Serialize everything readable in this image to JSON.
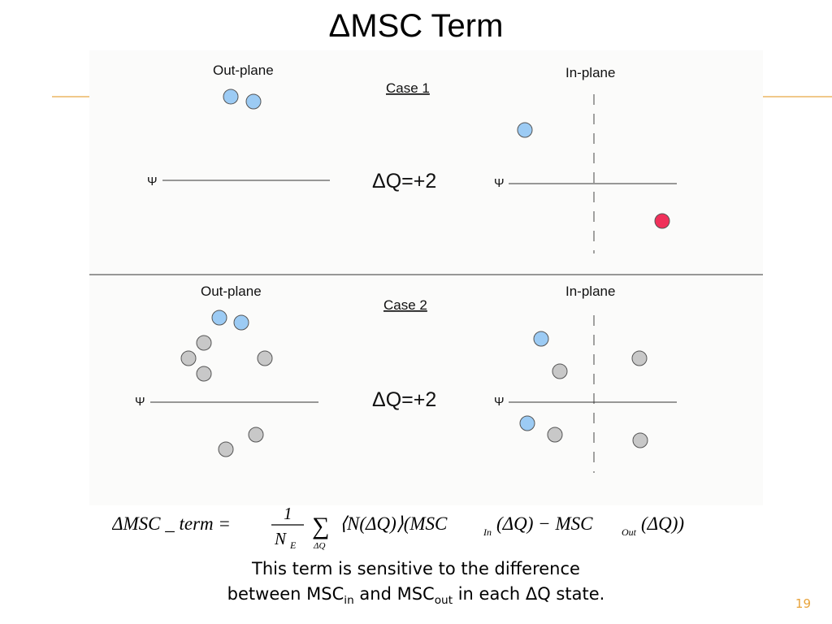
{
  "slide": {
    "title": "ΔMSC Term",
    "page_number": "19"
  },
  "colors": {
    "blue_particle": "#9ccbf4",
    "gray_particle": "#c8c8c8",
    "red_particle": "#f0305a",
    "accent_line": "#f0c88a",
    "page_number": "#e8a33a"
  },
  "case1": {
    "label": "Case 1",
    "out_label": "Out-plane",
    "in_label": "In-plane",
    "dq_label": "ΔQ=+2",
    "psi": "Ψ"
  },
  "case2": {
    "label": "Case 2",
    "out_label": "Out-plane",
    "in_label": "In-plane",
    "dq_label": "ΔQ=+2",
    "psi": "Ψ"
  },
  "formula": {
    "lhs": "ΔMSC _ term =",
    "numerator": "1",
    "denominator": "N",
    "denominator_sub": "E",
    "sum_symbol": "∑",
    "sum_sub": "ΔQ",
    "body": "⟨N(ΔQ)⟩(MSC",
    "in_sub": "In",
    "mid": "(ΔQ) − MSC",
    "out_sub": "Out",
    "end": "(ΔQ))"
  },
  "caption": {
    "line1": "This term is sensitive to the difference",
    "line2_a": "between MSC",
    "line2_sub1": "in",
    "line2_b": " and MSC",
    "line2_sub2": "out",
    "line2_c": " in each ΔQ state."
  }
}
